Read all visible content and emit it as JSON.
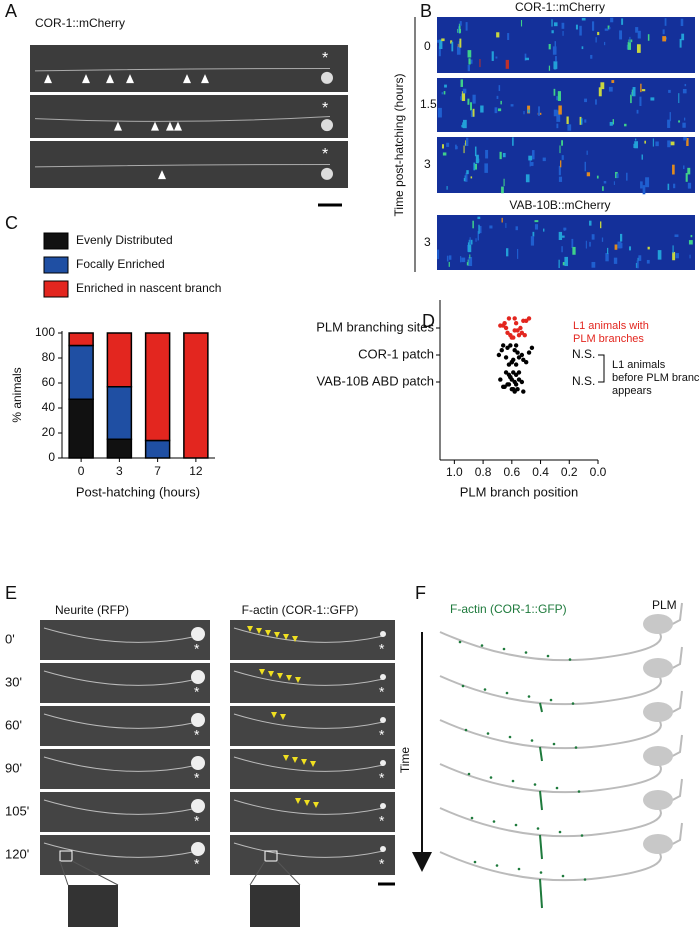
{
  "panel_labels": [
    "A",
    "B",
    "C",
    "D",
    "E",
    "F"
  ],
  "panel_a": {
    "title": "COR-1::mCherry",
    "marker": "*"
  },
  "panel_b": {
    "title": "COR-1::mCherry",
    "second_title": "VAB-10B::mCherry",
    "axis_label": "Time post-hatching (hours)",
    "row_labels": [
      "0",
      "1.5",
      "3",
      "3"
    ]
  },
  "chart_data": [
    {
      "type": "bar",
      "stacked": true,
      "legend": "top",
      "categories": [
        "0",
        "3",
        "7",
        "12"
      ],
      "xlabel": "Post-hatching (hours)",
      "ylabel": "% animals",
      "series": [
        {
          "name": "Evenly Distributed",
          "color": "#111111",
          "values": [
            47,
            15,
            0,
            0
          ]
        },
        {
          "name": "Focally Enriched",
          "color": "#1f4fa3",
          "values": [
            43,
            42,
            14,
            0
          ]
        },
        {
          "name": "Enriched in nascent branch",
          "color": "#e3261f",
          "values": [
            10,
            43,
            86,
            100
          ]
        }
      ],
      "ylim": [
        0,
        100
      ],
      "yticks": [
        0,
        20,
        40,
        60,
        80,
        100
      ]
    },
    {
      "type": "strip",
      "categories": [
        "PLM branching sites",
        "COR-1 patch",
        "VAB-10B ABD patch"
      ],
      "colors": [
        "#e3261f",
        "#000000",
        "#000000"
      ],
      "values": [
        [
          0.62,
          0.55,
          0.58,
          0.66,
          0.5,
          0.6,
          0.53,
          0.64,
          0.57,
          0.48,
          0.61,
          0.56,
          0.68,
          0.52,
          0.59,
          0.63,
          0.54,
          0.65,
          0.58,
          0.51
        ],
        [
          0.66,
          0.6,
          0.55,
          0.48,
          0.63,
          0.57,
          0.52,
          0.69,
          0.58,
          0.61,
          0.5,
          0.64,
          0.56,
          0.46,
          0.62,
          0.59,
          0.53,
          0.67,
          0.57,
          0.6
        ],
        [
          0.64,
          0.6,
          0.57,
          0.55,
          0.62,
          0.58,
          0.66,
          0.53,
          0.61,
          0.59,
          0.56,
          0.63,
          0.6,
          0.57,
          0.52,
          0.65,
          0.58,
          0.61,
          0.55,
          0.59,
          0.62,
          0.68
        ]
      ],
      "xlabel": "PLM branch position",
      "xlim": [
        1.1,
        0
      ],
      "xticks": [
        {
          "value": 1,
          "label": "1.0"
        },
        0.8,
        0.6,
        0.4,
        0.2,
        {
          "value": 0,
          "label": "0.0"
        }
      ],
      "annotations": {
        "branch_note": [
          "L1 animals with",
          "PLM branches"
        ],
        "ns": [
          "N.S.",
          "N.S."
        ],
        "before_note": [
          "L1 animals",
          "before PLM branch",
          "appears"
        ]
      }
    }
  ],
  "panel_e": {
    "columns": [
      "Neurite (RFP)",
      "F-actin (COR-1::GFP)"
    ],
    "times": [
      "0'",
      "30'",
      "60'",
      "90'",
      "105'",
      "120'"
    ],
    "marker": "*"
  },
  "panel_f": {
    "title": "F-actin (COR-1::GFP)",
    "cell_label": "PLM",
    "axis_label": "Time"
  }
}
